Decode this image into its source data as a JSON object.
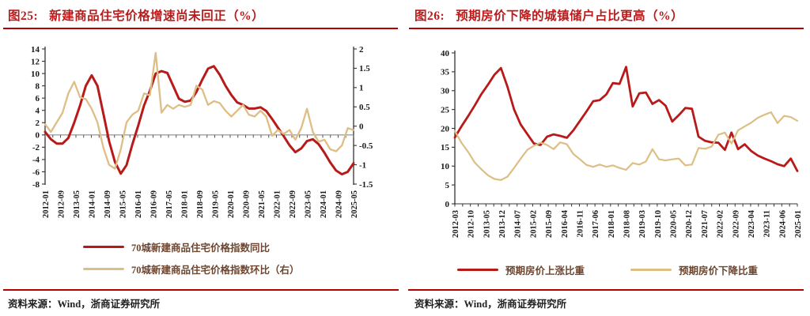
{
  "figures": [
    {
      "label": "图25:",
      "title": "新建商品住宅价格增速尚未回正（%）",
      "source": "资料来源：Wind，浙商证券研究所"
    },
    {
      "label": "图26:",
      "title": "预期房价下降的城镇储户占比更高（%）",
      "source": "资料来源：Wind，浙商证券研究所"
    }
  ],
  "colors": {
    "title_red": "#bf1a1a",
    "rule_red": "#b30000",
    "line_red": "#b81a1a",
    "line_tan": "#ddbe85",
    "legend_text": "#6e4630",
    "axis_text": "#1a1a1a",
    "zero_line_gray": "#8c8c8c"
  },
  "chart_data": [
    {
      "type": "line",
      "title": "新建商品住宅价格增速尚未回正（%）",
      "xlabel": "",
      "ylabel": "",
      "grid": false,
      "legend_position": "bottom-stacked",
      "x_start": "2012-01",
      "x_end": "2025-05",
      "x_tick_labels": [
        "2012-01",
        "2012-09",
        "2013-05",
        "2014-01",
        "2014-09",
        "2015-05",
        "2016-01",
        "2016-09",
        "2017-05",
        "2018-01",
        "2018-09",
        "2019-05",
        "2020-01",
        "2020-09",
        "2021-05",
        "2022-01",
        "2022-09",
        "2023-05",
        "2024-01",
        "2024-09",
        "2025-05"
      ],
      "y_left": {
        "min": -8,
        "max": 14,
        "step": 2
      },
      "y_right": {
        "min": -1.5,
        "max": 2,
        "step": 0.5
      },
      "x_axis_at_left_value": 0,
      "series": [
        {
          "name": "70城新建商品住宅价格指数同比",
          "key": "yoy",
          "axis": "left",
          "color": "#b81a1a",
          "sampling": "quarterly 2012-01 to 2025-04",
          "values": [
            0.5,
            -0.7,
            -1.4,
            -1.4,
            -0.5,
            2.0,
            4.8,
            8.0,
            9.7,
            8.0,
            3.5,
            -1.0,
            -4.4,
            -6.3,
            -4.9,
            -1.5,
            1.5,
            4.8,
            7.2,
            10.0,
            10.4,
            10.1,
            8.0,
            5.9,
            5.4,
            5.6,
            7.0,
            9.0,
            10.8,
            11.2,
            9.8,
            8.0,
            6.5,
            5.3,
            4.9,
            4.3,
            4.3,
            4.5,
            3.9,
            2.6,
            1.2,
            -0.2,
            -1.7,
            -2.8,
            -2.2,
            -1.0,
            -0.7,
            -1.5,
            -2.9,
            -4.5,
            -5.8,
            -6.4,
            -6.0,
            -4.6
          ]
        },
        {
          "name": "70城新建商品住宅价格指数环比（右）",
          "key": "mom",
          "axis": "right",
          "color": "#ddbe85",
          "sampling": "quarterly 2012-01 to 2025-04",
          "values": [
            0.05,
            -0.15,
            0.1,
            0.35,
            0.85,
            1.15,
            0.75,
            0.7,
            0.45,
            0.1,
            -0.55,
            -1.0,
            -1.1,
            -0.6,
            0.1,
            0.3,
            0.4,
            0.85,
            0.8,
            1.9,
            0.35,
            0.55,
            0.45,
            0.55,
            0.5,
            0.55,
            1.05,
            0.95,
            0.55,
            0.65,
            0.6,
            0.4,
            0.25,
            0.4,
            0.55,
            0.3,
            0.25,
            0.4,
            0.25,
            -0.25,
            -0.1,
            -0.2,
            -0.1,
            -0.35,
            -0.05,
            0.45,
            -0.15,
            -0.4,
            -0.35,
            -0.6,
            -0.65,
            -0.5,
            -0.05,
            -0.1
          ]
        }
      ]
    },
    {
      "type": "line",
      "title": "预期房价下降的城镇储户占比更高（%）",
      "xlabel": "",
      "ylabel": "",
      "grid": false,
      "legend_position": "bottom-row",
      "x_start": "2012-03",
      "x_end": "2025-01",
      "x_tick_labels": [
        "2012-03",
        "2012-10",
        "2013-05",
        "2013-12",
        "2014-07",
        "2015-02",
        "2015-09",
        "2016-04",
        "2016-11",
        "2017-06",
        "2018-01",
        "2018-08",
        "2019-03",
        "2019-10",
        "2020-05",
        "2020-12",
        "2021-07",
        "2022-02",
        "2022-09",
        "2023-04",
        "2023-11",
        "2024-06",
        "2025-01"
      ],
      "y_left": {
        "min": 0,
        "max": 40,
        "step": 5
      },
      "y_right": null,
      "x_axis_at_left_value": 0,
      "series": [
        {
          "name": "预期房价上涨比重",
          "key": "expect-rise",
          "axis": "left",
          "color": "#b81a1a",
          "sampling": "quarterly 2012Q1 to 2025Q1",
          "values": [
            17.6,
            20.5,
            23.2,
            26.0,
            29.0,
            31.5,
            34.2,
            36.0,
            31.0,
            25.0,
            21.0,
            18.5,
            16.0,
            15.6,
            17.8,
            18.4,
            18.0,
            17.5,
            19.5,
            22.0,
            24.5,
            27.2,
            27.5,
            29.0,
            32.0,
            31.8,
            36.3,
            25.8,
            29.3,
            29.5,
            26.5,
            27.5,
            26.0,
            21.8,
            23.5,
            25.4,
            25.2,
            17.8,
            16.7,
            16.3,
            16.2,
            14.3,
            18.9,
            14.5,
            15.8,
            14.0,
            12.8,
            12.0,
            11.3,
            10.5,
            10.0,
            12.0,
            8.7
          ]
        },
        {
          "name": "预期房价下降比重",
          "key": "expect-fall",
          "axis": "left",
          "color": "#ddbe85",
          "sampling": "quarterly 2012Q1 to 2025Q1",
          "values": [
            19.3,
            16.2,
            13.8,
            11.0,
            9.2,
            7.6,
            6.6,
            6.3,
            7.2,
            9.5,
            12.0,
            14.3,
            15.4,
            16.2,
            15.6,
            14.5,
            16.3,
            15.8,
            13.2,
            11.8,
            10.3,
            9.8,
            10.4,
            9.8,
            10.2,
            9.5,
            9.0,
            10.8,
            10.4,
            11.2,
            14.5,
            11.8,
            11.5,
            11.8,
            12.0,
            10.2,
            10.4,
            14.8,
            14.6,
            15.2,
            18.3,
            18.9,
            16.0,
            19.5,
            20.5,
            21.5,
            22.8,
            23.6,
            24.3,
            21.4,
            23.3,
            23.0,
            22.0
          ]
        }
      ]
    }
  ]
}
